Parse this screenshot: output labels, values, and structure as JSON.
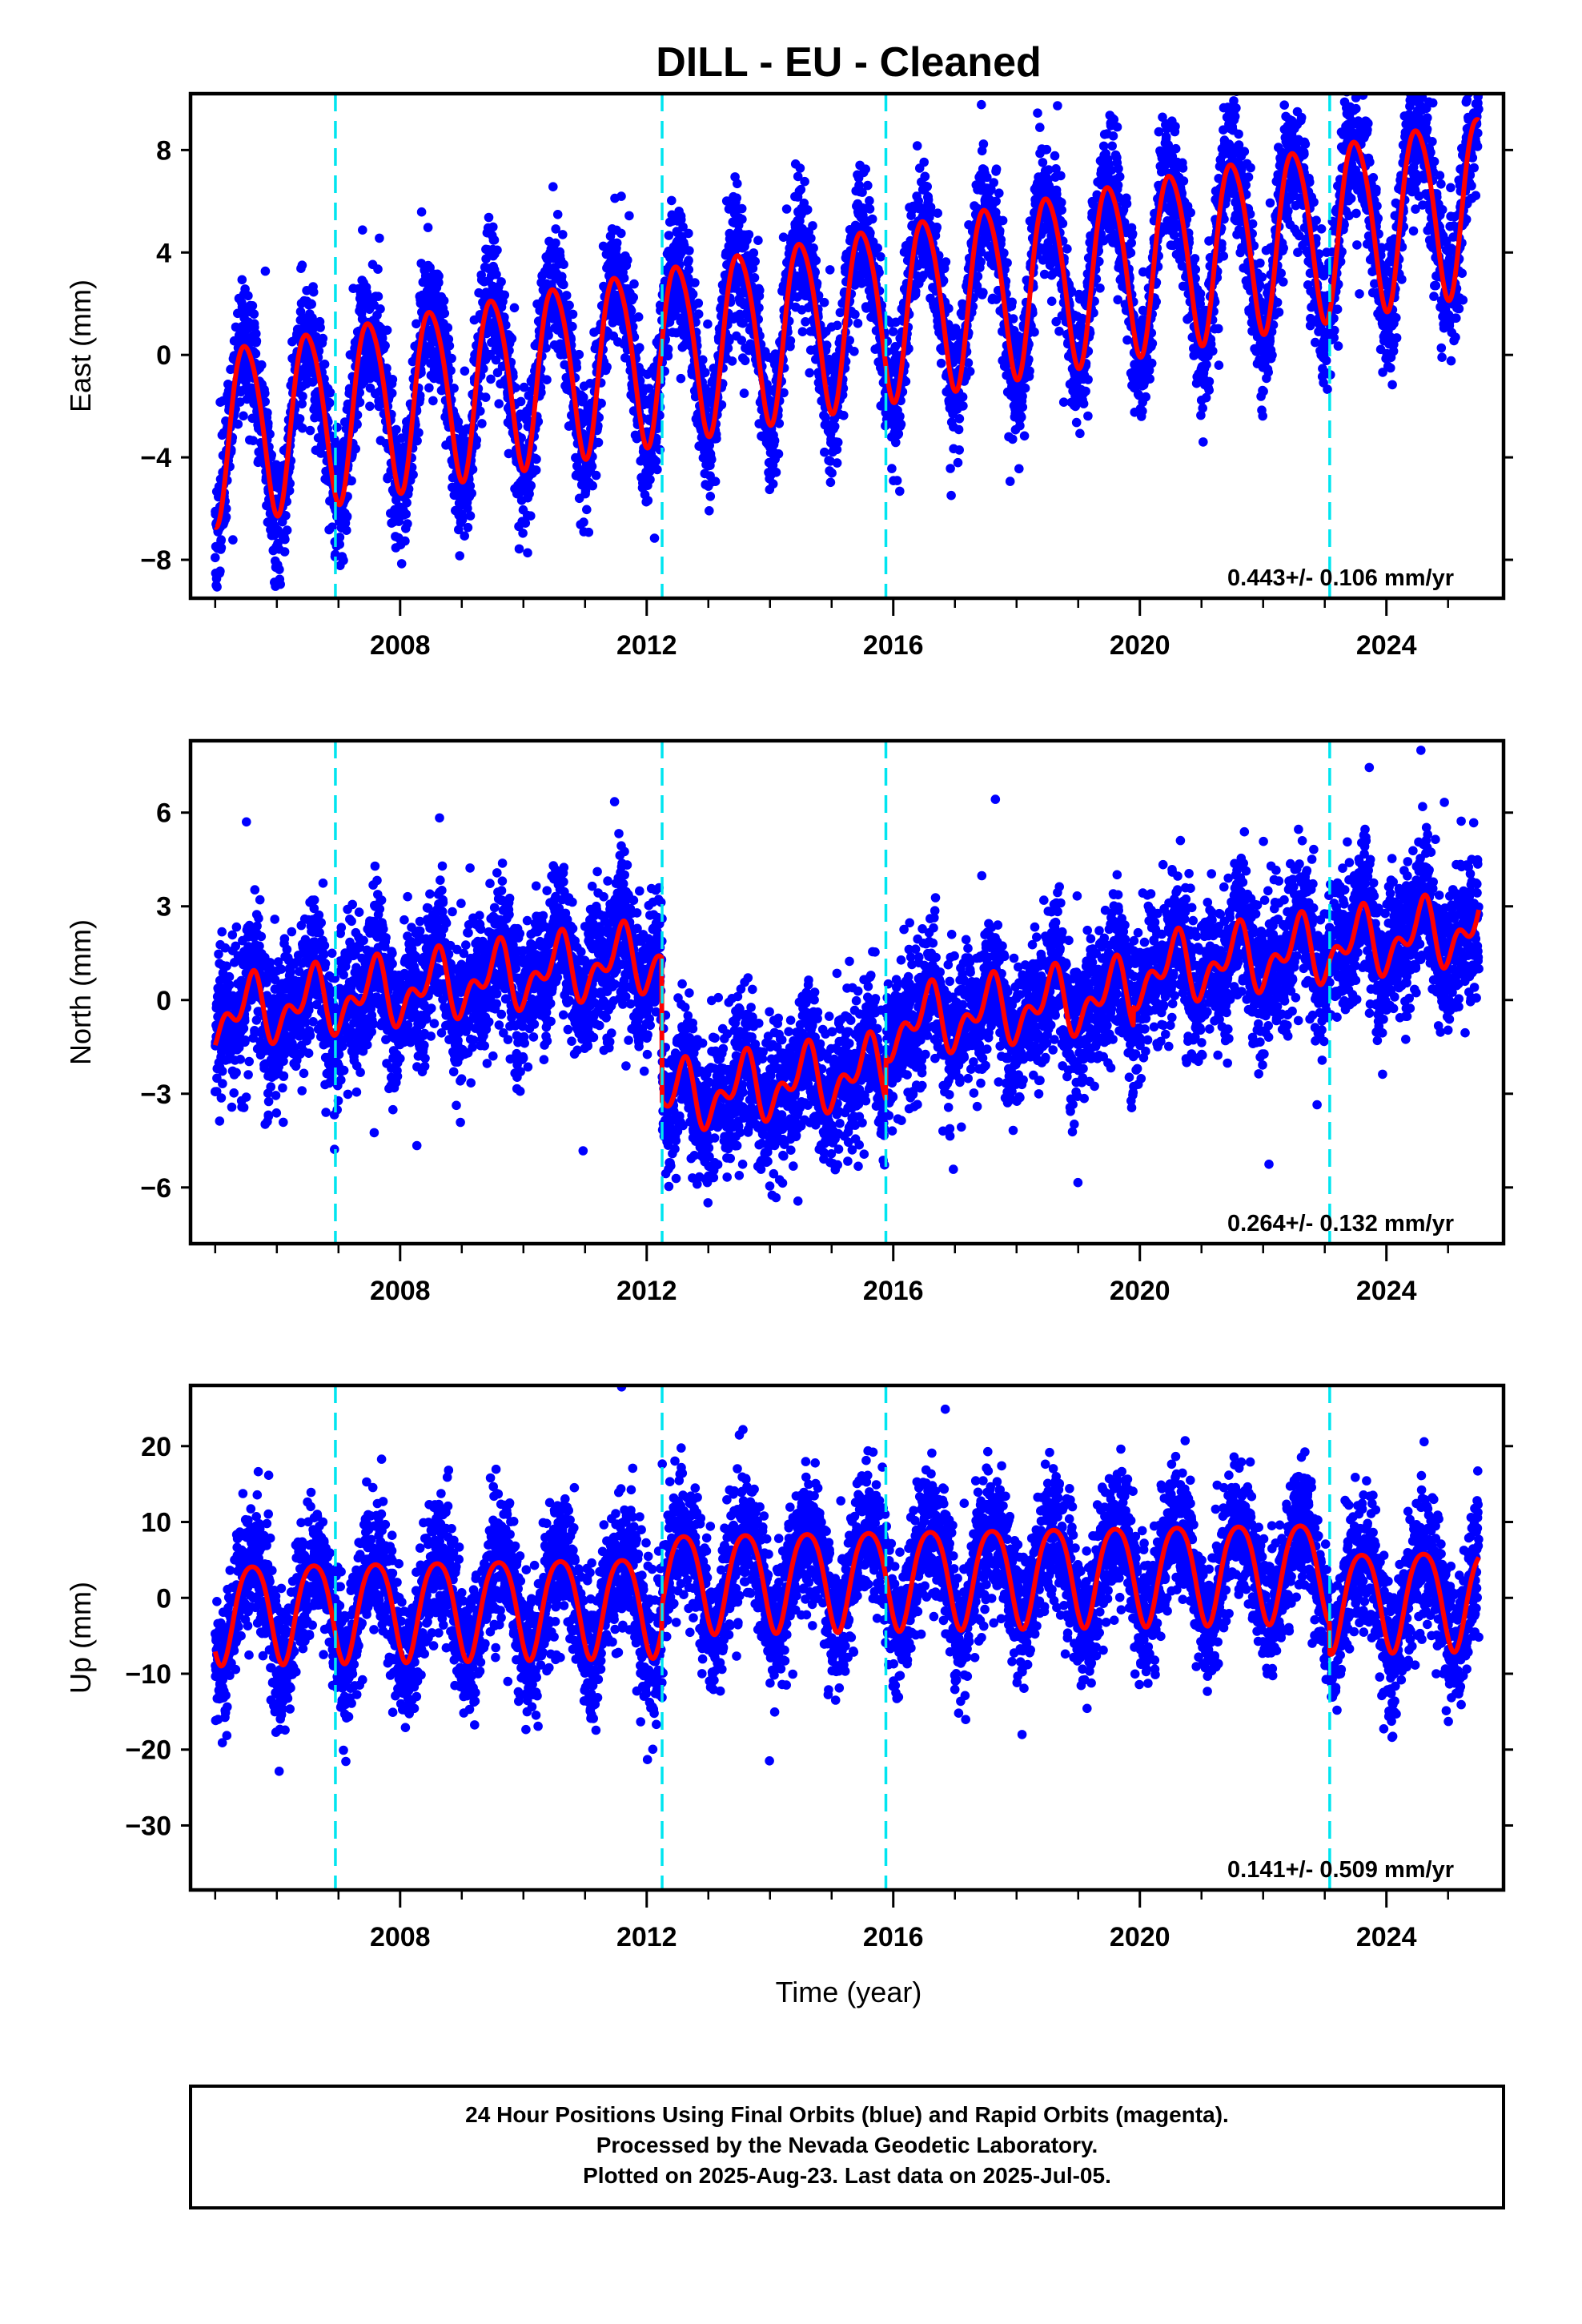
{
  "title": "DILL  - EU - Cleaned",
  "footer": {
    "lines": [
      "24 Hour Positions Using Final Orbits (blue) and Rapid Orbits (magenta).",
      "Processed by the Nevada Geodetic Laboratory.",
      "Plotted on 2025-Aug-23. Last data on 2025-Jul-05."
    ]
  },
  "xlabel": "Time (year)",
  "colors": {
    "points": "#0000ff",
    "model": "#ff0000",
    "breaks": "#00e5f0",
    "frame": "#000000"
  },
  "chart_data": [
    {
      "type": "scatter",
      "name": "east",
      "ylabel": "East (mm)",
      "rate_text": "0.443+/- 0.106 mm/yr",
      "xlim": [
        2004.6,
        2025.9
      ],
      "ylim": [
        -9.5,
        10.2
      ],
      "xticks": [
        2008,
        2012,
        2016,
        2020,
        2024
      ],
      "yticks": [
        -8,
        -4,
        0,
        4,
        8
      ],
      "breaks": [
        2006.95,
        2012.25,
        2015.88,
        2023.08
      ],
      "model": {
        "t0": 2005.0,
        "t1": 2025.5,
        "offset": -3.0,
        "slope": 0.443,
        "annual_amp": 3.4,
        "annual_peak": 0.5,
        "semiannual_amp": 0.4,
        "semiannual_peak": 0.3,
        "steps": [],
        "noise": 1.25,
        "seed": 11
      }
    },
    {
      "type": "scatter",
      "name": "north",
      "ylabel": "North (mm)",
      "rate_text": "0.264+/- 0.132 mm/yr",
      "xlim": [
        2004.6,
        2025.9
      ],
      "ylim": [
        -7.8,
        8.3
      ],
      "xticks": [
        2008,
        2012,
        2016,
        2020,
        2024
      ],
      "yticks": [
        -6,
        -3,
        0,
        3,
        6
      ],
      "breaks": [
        2006.95,
        2012.25,
        2015.88,
        2023.08
      ],
      "model": {
        "t0": 2005.0,
        "t1": 2025.5,
        "offset": -0.5,
        "slope": 0.264,
        "annual_amp": 0.8,
        "annual_peak": 0.55,
        "semiannual_amp": 0.6,
        "semiannual_peak": 0.15,
        "steps": [
          {
            "t": 2012.25,
            "d": -4.6
          },
          {
            "t": 2015.88,
            "d": 1.4
          },
          {
            "t": 2019.9,
            "d": 0.6
          }
        ],
        "noise": 1.15,
        "seed": 23
      }
    },
    {
      "type": "scatter",
      "name": "up",
      "ylabel": "Up (mm)",
      "rate_text": "0.141+/- 0.509 mm/yr",
      "xlim": [
        2004.6,
        2025.9
      ],
      "ylim": [
        -38.5,
        28.0
      ],
      "xticks": [
        2008,
        2012,
        2016,
        2020,
        2024
      ],
      "yticks": [
        -30,
        -20,
        -10,
        0,
        10,
        20
      ],
      "breaks": [
        2006.95,
        2012.25,
        2015.88,
        2023.08
      ],
      "model": {
        "t0": 2005.0,
        "t1": 2025.5,
        "offset": -1.5,
        "slope": 0.141,
        "annual_amp": 6.5,
        "annual_peak": 0.6,
        "semiannual_amp": 1.0,
        "semiannual_peak": 0.35,
        "steps": [
          {
            "t": 2012.25,
            "d": 3.0
          },
          {
            "t": 2023.08,
            "d": -4.0
          }
        ],
        "noise": 4.3,
        "seed": 37
      }
    }
  ]
}
